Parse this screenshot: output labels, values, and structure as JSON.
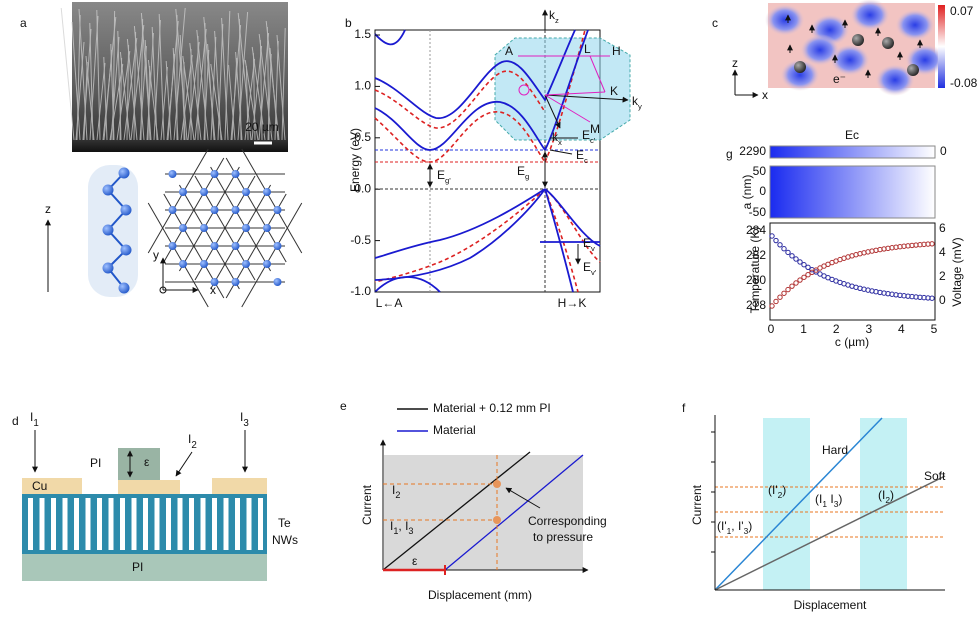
{
  "a": {
    "label": "a",
    "scale_bar": "20 µm",
    "z_axis": "z",
    "y_axis": "y",
    "x_axis": "x"
  },
  "b": {
    "label": "b",
    "y_label": "Energy (eV)",
    "yticks": [
      "1.5",
      "1.0",
      "0.5",
      "0.0",
      "-0.5",
      "-1.0"
    ],
    "x_left": "L←A",
    "x_right": "H→K",
    "Ec_prime": [
      "E",
      {
        "sub": "c'"
      }
    ],
    "Ec": [
      "E",
      {
        "sub": "c"
      }
    ],
    "Eg_prime": [
      "E",
      {
        "sub": "g'"
      }
    ],
    "Eg": [
      "E",
      {
        "sub": "g"
      }
    ],
    "Ev": [
      "E",
      {
        "sub": "v"
      }
    ],
    "Ev_prime": [
      "E",
      {
        "sub": "v'"
      }
    ],
    "bz": {
      "kz": [
        "k",
        {
          "sub": "z"
        }
      ],
      "A": "A",
      "L": "L",
      "H": "H",
      "K": "K",
      "M": "M",
      "kx": [
        "k",
        {
          "sub": "x"
        }
      ],
      "ky": [
        "k",
        {
          "sub": "y"
        }
      ]
    }
  },
  "c": {
    "label": "c",
    "max": "0.07",
    "min": "-0.08",
    "z_axis": "z",
    "x_axis": "x",
    "electron": "e⁻"
  },
  "g": {
    "label": "g",
    "title": "Ec",
    "cbar_left": "2290",
    "cbar_right": "0",
    "a_label": "a (nm)",
    "a_ticks": [
      "50",
      "0",
      "-50"
    ],
    "temp_label": "Temperature (K)",
    "temp_ticks": [
      "284",
      "282",
      "280",
      "278"
    ],
    "volt_label": "Voltage (mV)",
    "volt_ticks": [
      "6",
      "4",
      "2",
      "0"
    ],
    "c_label": "c (µm)",
    "c_ticks": [
      "0",
      "1",
      "2",
      "3",
      "4",
      "5"
    ]
  },
  "d": {
    "label": "d",
    "I1": [
      "I",
      {
        "sub": "1"
      }
    ],
    "I2": [
      "I",
      {
        "sub": "2"
      }
    ],
    "I3": [
      "I",
      {
        "sub": "3"
      }
    ],
    "PI_top": "PI",
    "epsilon": "ε",
    "Cu": "Cu",
    "Te": "Te",
    "NWs": "NWs",
    "PI_bottom": "PI"
  },
  "e": {
    "label": "e",
    "legend": [
      "Material + 0.12 mm PI",
      "Material"
    ],
    "I2": [
      "I",
      {
        "sub": "2"
      }
    ],
    "I1_I3": [
      "I",
      {
        "sub": "1"
      },
      ", I",
      {
        "sub": "3"
      }
    ],
    "note": [
      "Corresponding",
      "to pressure"
    ],
    "epsilon": "ε",
    "y_label": "Current",
    "x_label": "Displacement (mm)"
  },
  "f": {
    "label": "f",
    "hard": "Hard",
    "soft": "Soft",
    "Ip2": [
      "(I'",
      {
        "sub": "2"
      },
      ")"
    ],
    "I2": [
      "(I",
      {
        "sub": "2"
      },
      ")"
    ],
    "I1_I3": [
      "(I",
      {
        "sub": "1"
      },
      " I",
      {
        "sub": "3"
      },
      ")"
    ],
    "Ip1_Ip3": [
      "(I'",
      {
        "sub": "1"
      },
      ", I'",
      {
        "sub": "3"
      },
      ")"
    ],
    "y_label": "Current",
    "x_label": "Displacement"
  }
}
